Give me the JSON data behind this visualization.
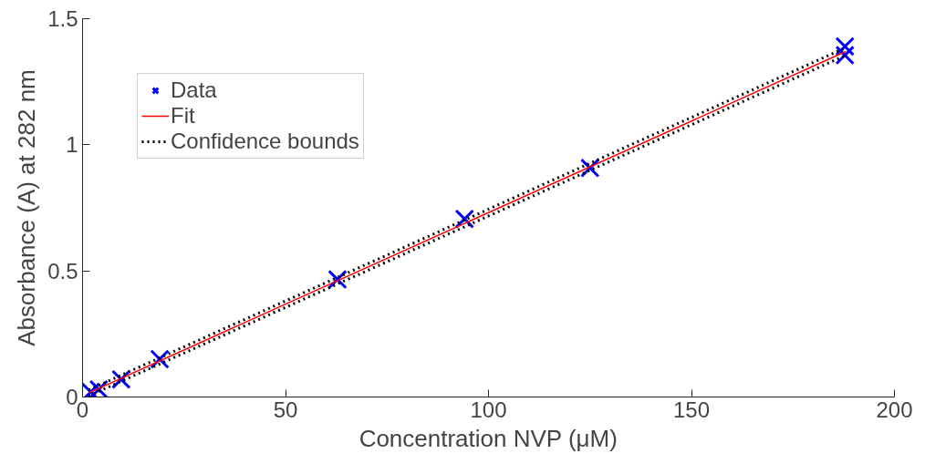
{
  "chart_data": {
    "type": "scatter",
    "xlabel": "Concentration NVP (μM)",
    "ylabel": "Absorbance (A) at 282 nm",
    "xlim": [
      0,
      200
    ],
    "ylim": [
      0,
      1.5
    ],
    "xticks": [
      0,
      50,
      100,
      150,
      200
    ],
    "yticks": [
      0,
      0.5,
      1,
      1.5
    ],
    "grid": false,
    "legend": "top left",
    "series": [
      {
        "name": "Data",
        "marker": "cross",
        "color": "#0000ff",
        "x": [
          2,
          4,
          9.5,
          19,
          62.8,
          94.1,
          125,
          187.8,
          187.8
        ],
        "values": [
          0.02,
          0.03,
          0.07,
          0.15,
          0.466,
          0.706,
          0.908,
          1.39,
          1.355
        ]
      },
      {
        "name": "Fit",
        "type": "line",
        "color": "#ff0000",
        "line_style": "solid",
        "x": [
          1.5,
          188
        ],
        "values": [
          0.016,
          1.37
        ]
      },
      {
        "name": "Confidence bounds",
        "type": "line",
        "color": "#000000",
        "line_style": "dotted",
        "x": [
          1.5,
          188
        ],
        "values": [
          0.028,
          1.385
        ]
      },
      {
        "type": "line",
        "color": "#000000",
        "line_style": "dotted",
        "x": [
          1.5,
          188
        ],
        "values": [
          0.004,
          1.355
        ]
      }
    ]
  }
}
